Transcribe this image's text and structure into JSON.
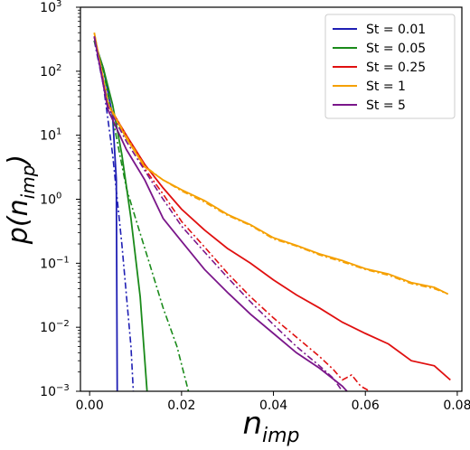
{
  "chart_data": {
    "type": "line",
    "title": "",
    "xlabel": "n",
    "xlabel_sub": "imp",
    "ylabel": "p(n",
    "ylabel_sub": "imp",
    "ylabel_close": ")",
    "xlim": [
      -0.002,
      0.081
    ],
    "ylim_log10": [
      -3,
      3
    ],
    "y_scale": "log",
    "x_ticks": [
      {
        "value": 0.0,
        "label": "0.00"
      },
      {
        "value": 0.02,
        "label": "0.02"
      },
      {
        "value": 0.04,
        "label": "0.04"
      },
      {
        "value": 0.06,
        "label": "0.06"
      },
      {
        "value": 0.08,
        "label": "0.08"
      }
    ],
    "y_ticks": [
      {
        "exp": -3,
        "base": "10",
        "sup": "−3"
      },
      {
        "exp": -2,
        "base": "10",
        "sup": "−2"
      },
      {
        "exp": -1,
        "base": "10",
        "sup": "−1"
      },
      {
        "exp": 0,
        "base": "10",
        "sup": "0"
      },
      {
        "exp": 1,
        "base": "10",
        "sup": "1"
      },
      {
        "exp": 2,
        "base": "10",
        "sup": "2"
      },
      {
        "exp": 3,
        "base": "10",
        "sup": "3"
      }
    ],
    "grid": false,
    "legend_position": "top-right",
    "series": [
      {
        "name": "St = 0.01",
        "color": "#1f1fb4",
        "solid": [
          [
            0.001,
            300
          ],
          [
            0.003,
            110
          ],
          [
            0.005,
            20
          ],
          [
            0.0058,
            2
          ],
          [
            0.006,
            0.001
          ]
        ],
        "dashdot": [
          [
            0.001,
            300
          ],
          [
            0.003,
            60
          ],
          [
            0.005,
            5
          ],
          [
            0.007,
            0.2
          ],
          [
            0.009,
            0.005
          ],
          [
            0.0095,
            0.001
          ]
        ]
      },
      {
        "name": "St = 0.05",
        "color": "#1a8a1a",
        "solid": [
          [
            0.001,
            300
          ],
          [
            0.003,
            110
          ],
          [
            0.005,
            30
          ],
          [
            0.007,
            5
          ],
          [
            0.009,
            0.5
          ],
          [
            0.011,
            0.03
          ],
          [
            0.0125,
            0.001
          ]
        ],
        "dashdot": [
          [
            0.001,
            300
          ],
          [
            0.003,
            100
          ],
          [
            0.006,
            8
          ],
          [
            0.008,
            1.5
          ],
          [
            0.01,
            0.5
          ],
          [
            0.013,
            0.1
          ],
          [
            0.016,
            0.02
          ],
          [
            0.019,
            0.005
          ],
          [
            0.0215,
            0.001
          ]
        ]
      },
      {
        "name": "St = 0.25",
        "color": "#e01010",
        "solid": [
          [
            0.001,
            350
          ],
          [
            0.004,
            30
          ],
          [
            0.008,
            10
          ],
          [
            0.012,
            3.5
          ],
          [
            0.016,
            1.5
          ],
          [
            0.02,
            0.7
          ],
          [
            0.025,
            0.33
          ],
          [
            0.03,
            0.17
          ],
          [
            0.035,
            0.1
          ],
          [
            0.04,
            0.055
          ],
          [
            0.045,
            0.032
          ],
          [
            0.05,
            0.02
          ],
          [
            0.055,
            0.012
          ],
          [
            0.06,
            0.008
          ],
          [
            0.065,
            0.0055
          ],
          [
            0.07,
            0.003
          ],
          [
            0.075,
            0.0025
          ],
          [
            0.0785,
            0.0015
          ]
        ],
        "dashdot": [
          [
            0.001,
            350
          ],
          [
            0.004,
            30
          ],
          [
            0.008,
            10
          ],
          [
            0.012,
            3
          ],
          [
            0.016,
            1.2
          ],
          [
            0.02,
            0.45
          ],
          [
            0.025,
            0.18
          ],
          [
            0.03,
            0.07
          ],
          [
            0.035,
            0.03
          ],
          [
            0.04,
            0.014
          ],
          [
            0.045,
            0.007
          ],
          [
            0.05,
            0.0035
          ],
          [
            0.053,
            0.0022
          ],
          [
            0.055,
            0.0015
          ],
          [
            0.057,
            0.0018
          ],
          [
            0.059,
            0.0012
          ],
          [
            0.061,
            0.001
          ]
        ]
      },
      {
        "name": "St = 1",
        "color": "#f5a000",
        "solid": [
          [
            0.001,
            400
          ],
          [
            0.004,
            30
          ],
          [
            0.008,
            9
          ],
          [
            0.012,
            3.2
          ],
          [
            0.016,
            2.0
          ],
          [
            0.02,
            1.4
          ],
          [
            0.025,
            0.95
          ],
          [
            0.03,
            0.58
          ],
          [
            0.035,
            0.4
          ],
          [
            0.04,
            0.25
          ],
          [
            0.045,
            0.19
          ],
          [
            0.05,
            0.14
          ],
          [
            0.055,
            0.11
          ],
          [
            0.06,
            0.082
          ],
          [
            0.065,
            0.068
          ],
          [
            0.07,
            0.05
          ],
          [
            0.075,
            0.042
          ],
          [
            0.078,
            0.033
          ]
        ],
        "dashdot": [
          [
            0.001,
            400
          ],
          [
            0.004,
            32
          ],
          [
            0.008,
            9.5
          ],
          [
            0.012,
            3.3
          ],
          [
            0.016,
            2.0
          ],
          [
            0.02,
            1.35
          ],
          [
            0.025,
            0.9
          ],
          [
            0.03,
            0.56
          ],
          [
            0.035,
            0.39
          ],
          [
            0.04,
            0.24
          ],
          [
            0.045,
            0.185
          ],
          [
            0.05,
            0.135
          ],
          [
            0.055,
            0.105
          ],
          [
            0.06,
            0.08
          ],
          [
            0.065,
            0.065
          ],
          [
            0.07,
            0.048
          ],
          [
            0.075,
            0.04
          ],
          [
            0.078,
            0.033
          ]
        ]
      },
      {
        "name": "St = 5",
        "color": "#7a168a",
        "solid": [
          [
            0.001,
            350
          ],
          [
            0.004,
            25
          ],
          [
            0.008,
            6
          ],
          [
            0.012,
            2
          ],
          [
            0.016,
            0.5
          ],
          [
            0.02,
            0.22
          ],
          [
            0.025,
            0.08
          ],
          [
            0.03,
            0.035
          ],
          [
            0.035,
            0.016
          ],
          [
            0.04,
            0.008
          ],
          [
            0.045,
            0.004
          ],
          [
            0.05,
            0.0023
          ],
          [
            0.055,
            0.0012
          ],
          [
            0.056,
            0.001
          ]
        ],
        "dashdot": [
          [
            0.001,
            350
          ],
          [
            0.004,
            28
          ],
          [
            0.008,
            8
          ],
          [
            0.012,
            2.8
          ],
          [
            0.016,
            1.0
          ],
          [
            0.02,
            0.38
          ],
          [
            0.025,
            0.15
          ],
          [
            0.03,
            0.06
          ],
          [
            0.035,
            0.025
          ],
          [
            0.04,
            0.011
          ],
          [
            0.045,
            0.005
          ],
          [
            0.05,
            0.0025
          ],
          [
            0.053,
            0.0016
          ],
          [
            0.055,
            0.001
          ]
        ]
      }
    ]
  }
}
